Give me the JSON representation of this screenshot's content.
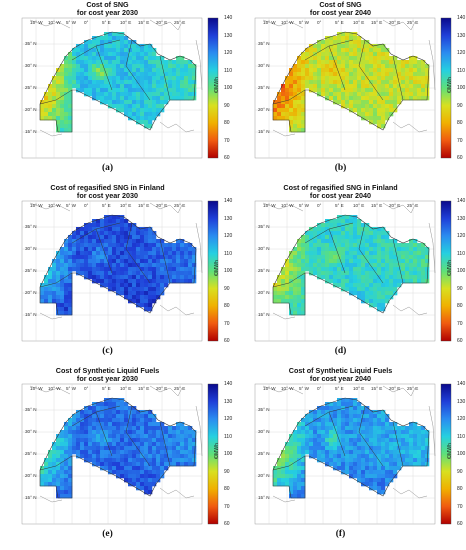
{
  "colorbar": {
    "ticks": [
      "140",
      "130",
      "120",
      "110",
      "100",
      "90",
      "80",
      "70",
      "60"
    ],
    "unit": "€/MWh",
    "range": [
      60,
      140
    ],
    "colors": [
      "#0a0a8c",
      "#1f3fd8",
      "#2a8cf0",
      "#25d0e0",
      "#5ee07a",
      "#d8e020",
      "#f0b000",
      "#f05a10",
      "#b00000"
    ]
  },
  "axes": {
    "lon_labels": [
      "15° W",
      "10° W",
      "5° W",
      "0°",
      "5° E",
      "10° E",
      "15° E",
      "20° E",
      "25° E"
    ],
    "lat_labels": [
      "35° N",
      "30° N",
      "25° N",
      "20° N",
      "15° N"
    ]
  },
  "panels": [
    {
      "title_line1": "Cost of SNG",
      "title_line2": "for cost year 2030",
      "caption": "(a)",
      "base_value": 112,
      "center_value": 96,
      "west_value": 78,
      "east_value": 104,
      "south_value": 110
    },
    {
      "title_line1": "Cost of SNG",
      "title_line2": "for cost year 2040",
      "caption": "(b)",
      "base_value": 92,
      "center_value": 84,
      "west_value": 68,
      "east_value": 90,
      "south_value": 97
    },
    {
      "title_line1": "Cost of regasified SNG in Finland",
      "title_line2": "for cost year 2030",
      "caption": "(c)",
      "base_value": 128,
      "center_value": 118,
      "west_value": 108,
      "east_value": 122,
      "south_value": 135
    },
    {
      "title_line1": "Cost of regasified SNG in Finland",
      "title_line2": "for cost year 2040",
      "caption": "(d)",
      "base_value": 108,
      "center_value": 100,
      "west_value": 86,
      "east_value": 104,
      "south_value": 112
    },
    {
      "title_line1": "Cost of Synthetic Liquid Fuels",
      "title_line2": "for cost year 2030",
      "caption": "(e)",
      "base_value": 124,
      "center_value": 114,
      "west_value": 100,
      "east_value": 118,
      "south_value": 132
    },
    {
      "title_line1": "Cost of Synthetic Liquid Fuels",
      "title_line2": "for cost year 2040",
      "caption": "(f)",
      "base_value": 118,
      "center_value": 106,
      "west_value": 92,
      "east_value": 112,
      "south_value": 128
    }
  ]
}
